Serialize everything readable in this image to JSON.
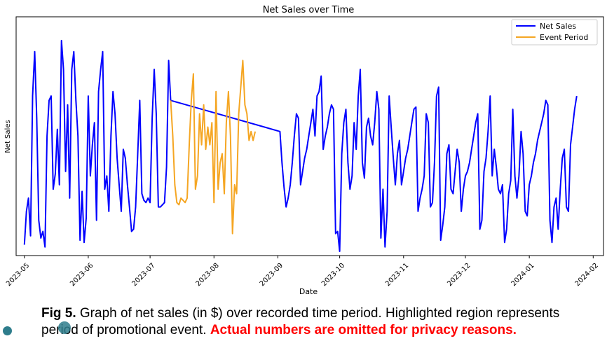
{
  "chart_data": {
    "type": "line",
    "title": "Net Sales over Time",
    "xlabel": "Date",
    "ylabel": "Net Sales",
    "x_ticks": [
      "2023-05",
      "2023-06",
      "2023-07",
      "2023-08",
      "2023-09",
      "2023-10",
      "2023-11",
      "2023-12",
      "2024-01",
      "2024-02"
    ],
    "y_ticks_shown": false,
    "grid": false,
    "legend_position": "top-right",
    "x_range": [
      "2023-04-27",
      "2024-02-06"
    ],
    "series": [
      {
        "name": "Net Sales",
        "color": "#0000ff",
        "points": [
          [
            "2023-05-01",
            3
          ],
          [
            "2023-05-02",
            18
          ],
          [
            "2023-05-03",
            24
          ],
          [
            "2023-05-04",
            7
          ],
          [
            "2023-05-05",
            70
          ],
          [
            "2023-05-06",
            90
          ],
          [
            "2023-05-07",
            60
          ],
          [
            "2023-05-08",
            14
          ],
          [
            "2023-05-09",
            6
          ],
          [
            "2023-05-10",
            9
          ],
          [
            "2023-05-11",
            2
          ],
          [
            "2023-05-12",
            52
          ],
          [
            "2023-05-13",
            68
          ],
          [
            "2023-05-14",
            70
          ],
          [
            "2023-05-15",
            28
          ],
          [
            "2023-05-16",
            35
          ],
          [
            "2023-05-17",
            55
          ],
          [
            "2023-05-18",
            30
          ],
          [
            "2023-05-19",
            95
          ],
          [
            "2023-05-20",
            82
          ],
          [
            "2023-05-21",
            36
          ],
          [
            "2023-05-22",
            66
          ],
          [
            "2023-05-23",
            24
          ],
          [
            "2023-05-24",
            82
          ],
          [
            "2023-05-25",
            90
          ],
          [
            "2023-05-26",
            68
          ],
          [
            "2023-05-27",
            52
          ],
          [
            "2023-05-28",
            5
          ],
          [
            "2023-05-29",
            27
          ],
          [
            "2023-05-30",
            4
          ],
          [
            "2023-05-31",
            15
          ],
          [
            "2023-06-01",
            70
          ],
          [
            "2023-06-02",
            34
          ],
          [
            "2023-06-03",
            48
          ],
          [
            "2023-06-04",
            58
          ],
          [
            "2023-06-05",
            14
          ],
          [
            "2023-06-06",
            72
          ],
          [
            "2023-06-07",
            82
          ],
          [
            "2023-06-08",
            90
          ],
          [
            "2023-06-09",
            28
          ],
          [
            "2023-06-10",
            34
          ],
          [
            "2023-06-11",
            18
          ],
          [
            "2023-06-12",
            52
          ],
          [
            "2023-06-13",
            72
          ],
          [
            "2023-06-14",
            62
          ],
          [
            "2023-06-15",
            42
          ],
          [
            "2023-06-16",
            30
          ],
          [
            "2023-06-17",
            18
          ],
          [
            "2023-06-18",
            46
          ],
          [
            "2023-06-19",
            42
          ],
          [
            "2023-06-20",
            30
          ],
          [
            "2023-06-21",
            20
          ],
          [
            "2023-06-22",
            9
          ],
          [
            "2023-06-23",
            10
          ],
          [
            "2023-06-24",
            20
          ],
          [
            "2023-06-25",
            44
          ],
          [
            "2023-06-26",
            68
          ],
          [
            "2023-06-27",
            26
          ],
          [
            "2023-06-28",
            23
          ],
          [
            "2023-06-29",
            22
          ],
          [
            "2023-06-30",
            24
          ],
          [
            "2023-07-01",
            22
          ],
          [
            "2023-07-02",
            60
          ],
          [
            "2023-07-03",
            82
          ],
          [
            "2023-07-04",
            62
          ],
          [
            "2023-07-05",
            20
          ],
          [
            "2023-07-06",
            20
          ],
          [
            "2023-07-07",
            21
          ],
          [
            "2023-07-08",
            22
          ],
          [
            "2023-07-09",
            38
          ],
          [
            "2023-07-10",
            86
          ],
          [
            "2023-07-11",
            68
          ],
          [
            "2023-09-02",
            54
          ],
          [
            "2023-09-03",
            40
          ],
          [
            "2023-09-04",
            29
          ],
          [
            "2023-09-05",
            20
          ],
          [
            "2023-09-06",
            24
          ],
          [
            "2023-09-07",
            30
          ],
          [
            "2023-09-08",
            40
          ],
          [
            "2023-09-09",
            52
          ],
          [
            "2023-09-10",
            62
          ],
          [
            "2023-09-11",
            60
          ],
          [
            "2023-09-12",
            30
          ],
          [
            "2023-09-13",
            36
          ],
          [
            "2023-09-14",
            42
          ],
          [
            "2023-09-15",
            46
          ],
          [
            "2023-09-16",
            52
          ],
          [
            "2023-09-17",
            58
          ],
          [
            "2023-09-18",
            64
          ],
          [
            "2023-09-19",
            52
          ],
          [
            "2023-09-20",
            70
          ],
          [
            "2023-09-21",
            72
          ],
          [
            "2023-09-22",
            79
          ],
          [
            "2023-09-23",
            46
          ],
          [
            "2023-09-24",
            52
          ],
          [
            "2023-09-25",
            56
          ],
          [
            "2023-09-26",
            62
          ],
          [
            "2023-09-27",
            66
          ],
          [
            "2023-09-28",
            64
          ],
          [
            "2023-09-29",
            8
          ],
          [
            "2023-09-30",
            9
          ],
          [
            "2023-10-01",
            0
          ],
          [
            "2023-10-02",
            44
          ],
          [
            "2023-10-03",
            58
          ],
          [
            "2023-10-04",
            64
          ],
          [
            "2023-10-05",
            40
          ],
          [
            "2023-10-06",
            28
          ],
          [
            "2023-10-07",
            34
          ],
          [
            "2023-10-08",
            58
          ],
          [
            "2023-10-09",
            46
          ],
          [
            "2023-10-10",
            70
          ],
          [
            "2023-10-11",
            82
          ],
          [
            "2023-10-12",
            40
          ],
          [
            "2023-10-13",
            33
          ],
          [
            "2023-10-14",
            56
          ],
          [
            "2023-10-15",
            60
          ],
          [
            "2023-10-16",
            52
          ],
          [
            "2023-10-17",
            48
          ],
          [
            "2023-10-18",
            58
          ],
          [
            "2023-10-19",
            72
          ],
          [
            "2023-10-20",
            64
          ],
          [
            "2023-10-21",
            6
          ],
          [
            "2023-10-22",
            28
          ],
          [
            "2023-10-23",
            2
          ],
          [
            "2023-10-24",
            18
          ],
          [
            "2023-10-25",
            70
          ],
          [
            "2023-10-26",
            56
          ],
          [
            "2023-10-27",
            42
          ],
          [
            "2023-10-28",
            30
          ],
          [
            "2023-10-29",
            44
          ],
          [
            "2023-10-30",
            50
          ],
          [
            "2023-10-31",
            30
          ],
          [
            "2023-11-01",
            36
          ],
          [
            "2023-11-02",
            42
          ],
          [
            "2023-11-03",
            46
          ],
          [
            "2023-11-04",
            52
          ],
          [
            "2023-11-05",
            58
          ],
          [
            "2023-11-06",
            64
          ],
          [
            "2023-11-07",
            65
          ],
          [
            "2023-11-08",
            18
          ],
          [
            "2023-11-09",
            24
          ],
          [
            "2023-11-10",
            28
          ],
          [
            "2023-11-11",
            34
          ],
          [
            "2023-11-12",
            62
          ],
          [
            "2023-11-13",
            58
          ],
          [
            "2023-11-14",
            20
          ],
          [
            "2023-11-15",
            22
          ],
          [
            "2023-11-16",
            40
          ],
          [
            "2023-11-17",
            70
          ],
          [
            "2023-11-18",
            74
          ],
          [
            "2023-11-19",
            5
          ],
          [
            "2023-11-20",
            12
          ],
          [
            "2023-11-21",
            20
          ],
          [
            "2023-11-22",
            44
          ],
          [
            "2023-11-23",
            48
          ],
          [
            "2023-11-24",
            28
          ],
          [
            "2023-11-25",
            26
          ],
          [
            "2023-11-26",
            36
          ],
          [
            "2023-11-27",
            46
          ],
          [
            "2023-11-28",
            40
          ],
          [
            "2023-11-29",
            18
          ],
          [
            "2023-11-30",
            28
          ],
          [
            "2023-12-01",
            34
          ],
          [
            "2023-12-02",
            36
          ],
          [
            "2023-12-03",
            40
          ],
          [
            "2023-12-04",
            46
          ],
          [
            "2023-12-05",
            52
          ],
          [
            "2023-12-06",
            58
          ],
          [
            "2023-12-07",
            62
          ],
          [
            "2023-12-08",
            10
          ],
          [
            "2023-12-09",
            14
          ],
          [
            "2023-12-10",
            36
          ],
          [
            "2023-12-11",
            42
          ],
          [
            "2023-12-12",
            54
          ],
          [
            "2023-12-13",
            70
          ],
          [
            "2023-12-14",
            34
          ],
          [
            "2023-12-15",
            46
          ],
          [
            "2023-12-16",
            38
          ],
          [
            "2023-12-17",
            28
          ],
          [
            "2023-12-18",
            26
          ],
          [
            "2023-12-19",
            30
          ],
          [
            "2023-12-20",
            4
          ],
          [
            "2023-12-21",
            10
          ],
          [
            "2023-12-22",
            26
          ],
          [
            "2023-12-23",
            32
          ],
          [
            "2023-12-24",
            64
          ],
          [
            "2023-12-25",
            34
          ],
          [
            "2023-12-26",
            24
          ],
          [
            "2023-12-27",
            34
          ],
          [
            "2023-12-28",
            54
          ],
          [
            "2023-12-29",
            44
          ],
          [
            "2023-12-30",
            18
          ],
          [
            "2023-12-31",
            16
          ],
          [
            "2024-01-01",
            30
          ],
          [
            "2024-01-02",
            34
          ],
          [
            "2024-01-03",
            40
          ],
          [
            "2024-01-04",
            44
          ],
          [
            "2024-01-05",
            50
          ],
          [
            "2024-01-06",
            54
          ],
          [
            "2024-01-07",
            58
          ],
          [
            "2024-01-08",
            62
          ],
          [
            "2024-01-09",
            68
          ],
          [
            "2024-01-10",
            66
          ],
          [
            "2024-01-11",
            14
          ],
          [
            "2024-01-12",
            4
          ],
          [
            "2024-01-13",
            20
          ],
          [
            "2024-01-14",
            24
          ],
          [
            "2024-01-15",
            10
          ],
          [
            "2024-01-16",
            28
          ],
          [
            "2024-01-17",
            42
          ],
          [
            "2024-01-18",
            46
          ],
          [
            "2024-01-19",
            20
          ],
          [
            "2024-01-20",
            18
          ],
          [
            "2024-01-21",
            48
          ],
          [
            "2024-01-22",
            56
          ],
          [
            "2024-01-23",
            64
          ],
          [
            "2024-01-24",
            70
          ]
        ]
      },
      {
        "name": "Event Period",
        "color": "#f5a623",
        "points": [
          [
            "2023-07-11",
            68
          ],
          [
            "2023-07-12",
            52
          ],
          [
            "2023-07-13",
            30
          ],
          [
            "2023-07-14",
            22
          ],
          [
            "2023-07-15",
            21
          ],
          [
            "2023-07-16",
            24
          ],
          [
            "2023-07-17",
            23
          ],
          [
            "2023-07-18",
            22
          ],
          [
            "2023-07-19",
            24
          ],
          [
            "2023-07-20",
            48
          ],
          [
            "2023-07-21",
            68
          ],
          [
            "2023-07-22",
            80
          ],
          [
            "2023-07-23",
            28
          ],
          [
            "2023-07-24",
            34
          ],
          [
            "2023-07-25",
            62
          ],
          [
            "2023-07-26",
            48
          ],
          [
            "2023-07-27",
            66
          ],
          [
            "2023-07-28",
            46
          ],
          [
            "2023-07-29",
            56
          ],
          [
            "2023-07-30",
            48
          ],
          [
            "2023-07-31",
            58
          ],
          [
            "2023-08-01",
            22
          ],
          [
            "2023-08-02",
            72
          ],
          [
            "2023-08-03",
            28
          ],
          [
            "2023-08-04",
            40
          ],
          [
            "2023-08-05",
            44
          ],
          [
            "2023-08-06",
            26
          ],
          [
            "2023-08-07",
            58
          ],
          [
            "2023-08-08",
            72
          ],
          [
            "2023-08-09",
            52
          ],
          [
            "2023-08-10",
            8
          ],
          [
            "2023-08-11",
            30
          ],
          [
            "2023-08-12",
            26
          ],
          [
            "2023-08-13",
            62
          ],
          [
            "2023-08-14",
            74
          ],
          [
            "2023-08-15",
            86
          ],
          [
            "2023-08-16",
            66
          ],
          [
            "2023-08-17",
            62
          ],
          [
            "2023-08-18",
            50
          ],
          [
            "2023-08-19",
            54
          ],
          [
            "2023-08-20",
            50
          ],
          [
            "2023-08-21",
            54
          ]
        ]
      }
    ]
  },
  "caption": {
    "prefix": "Fig 5.",
    "text": " Graph of net sales (in $) over recorded time period. Highlighted region represents period of promotional event. ",
    "warning": "Actual numbers are omitted for privacy reasons."
  }
}
